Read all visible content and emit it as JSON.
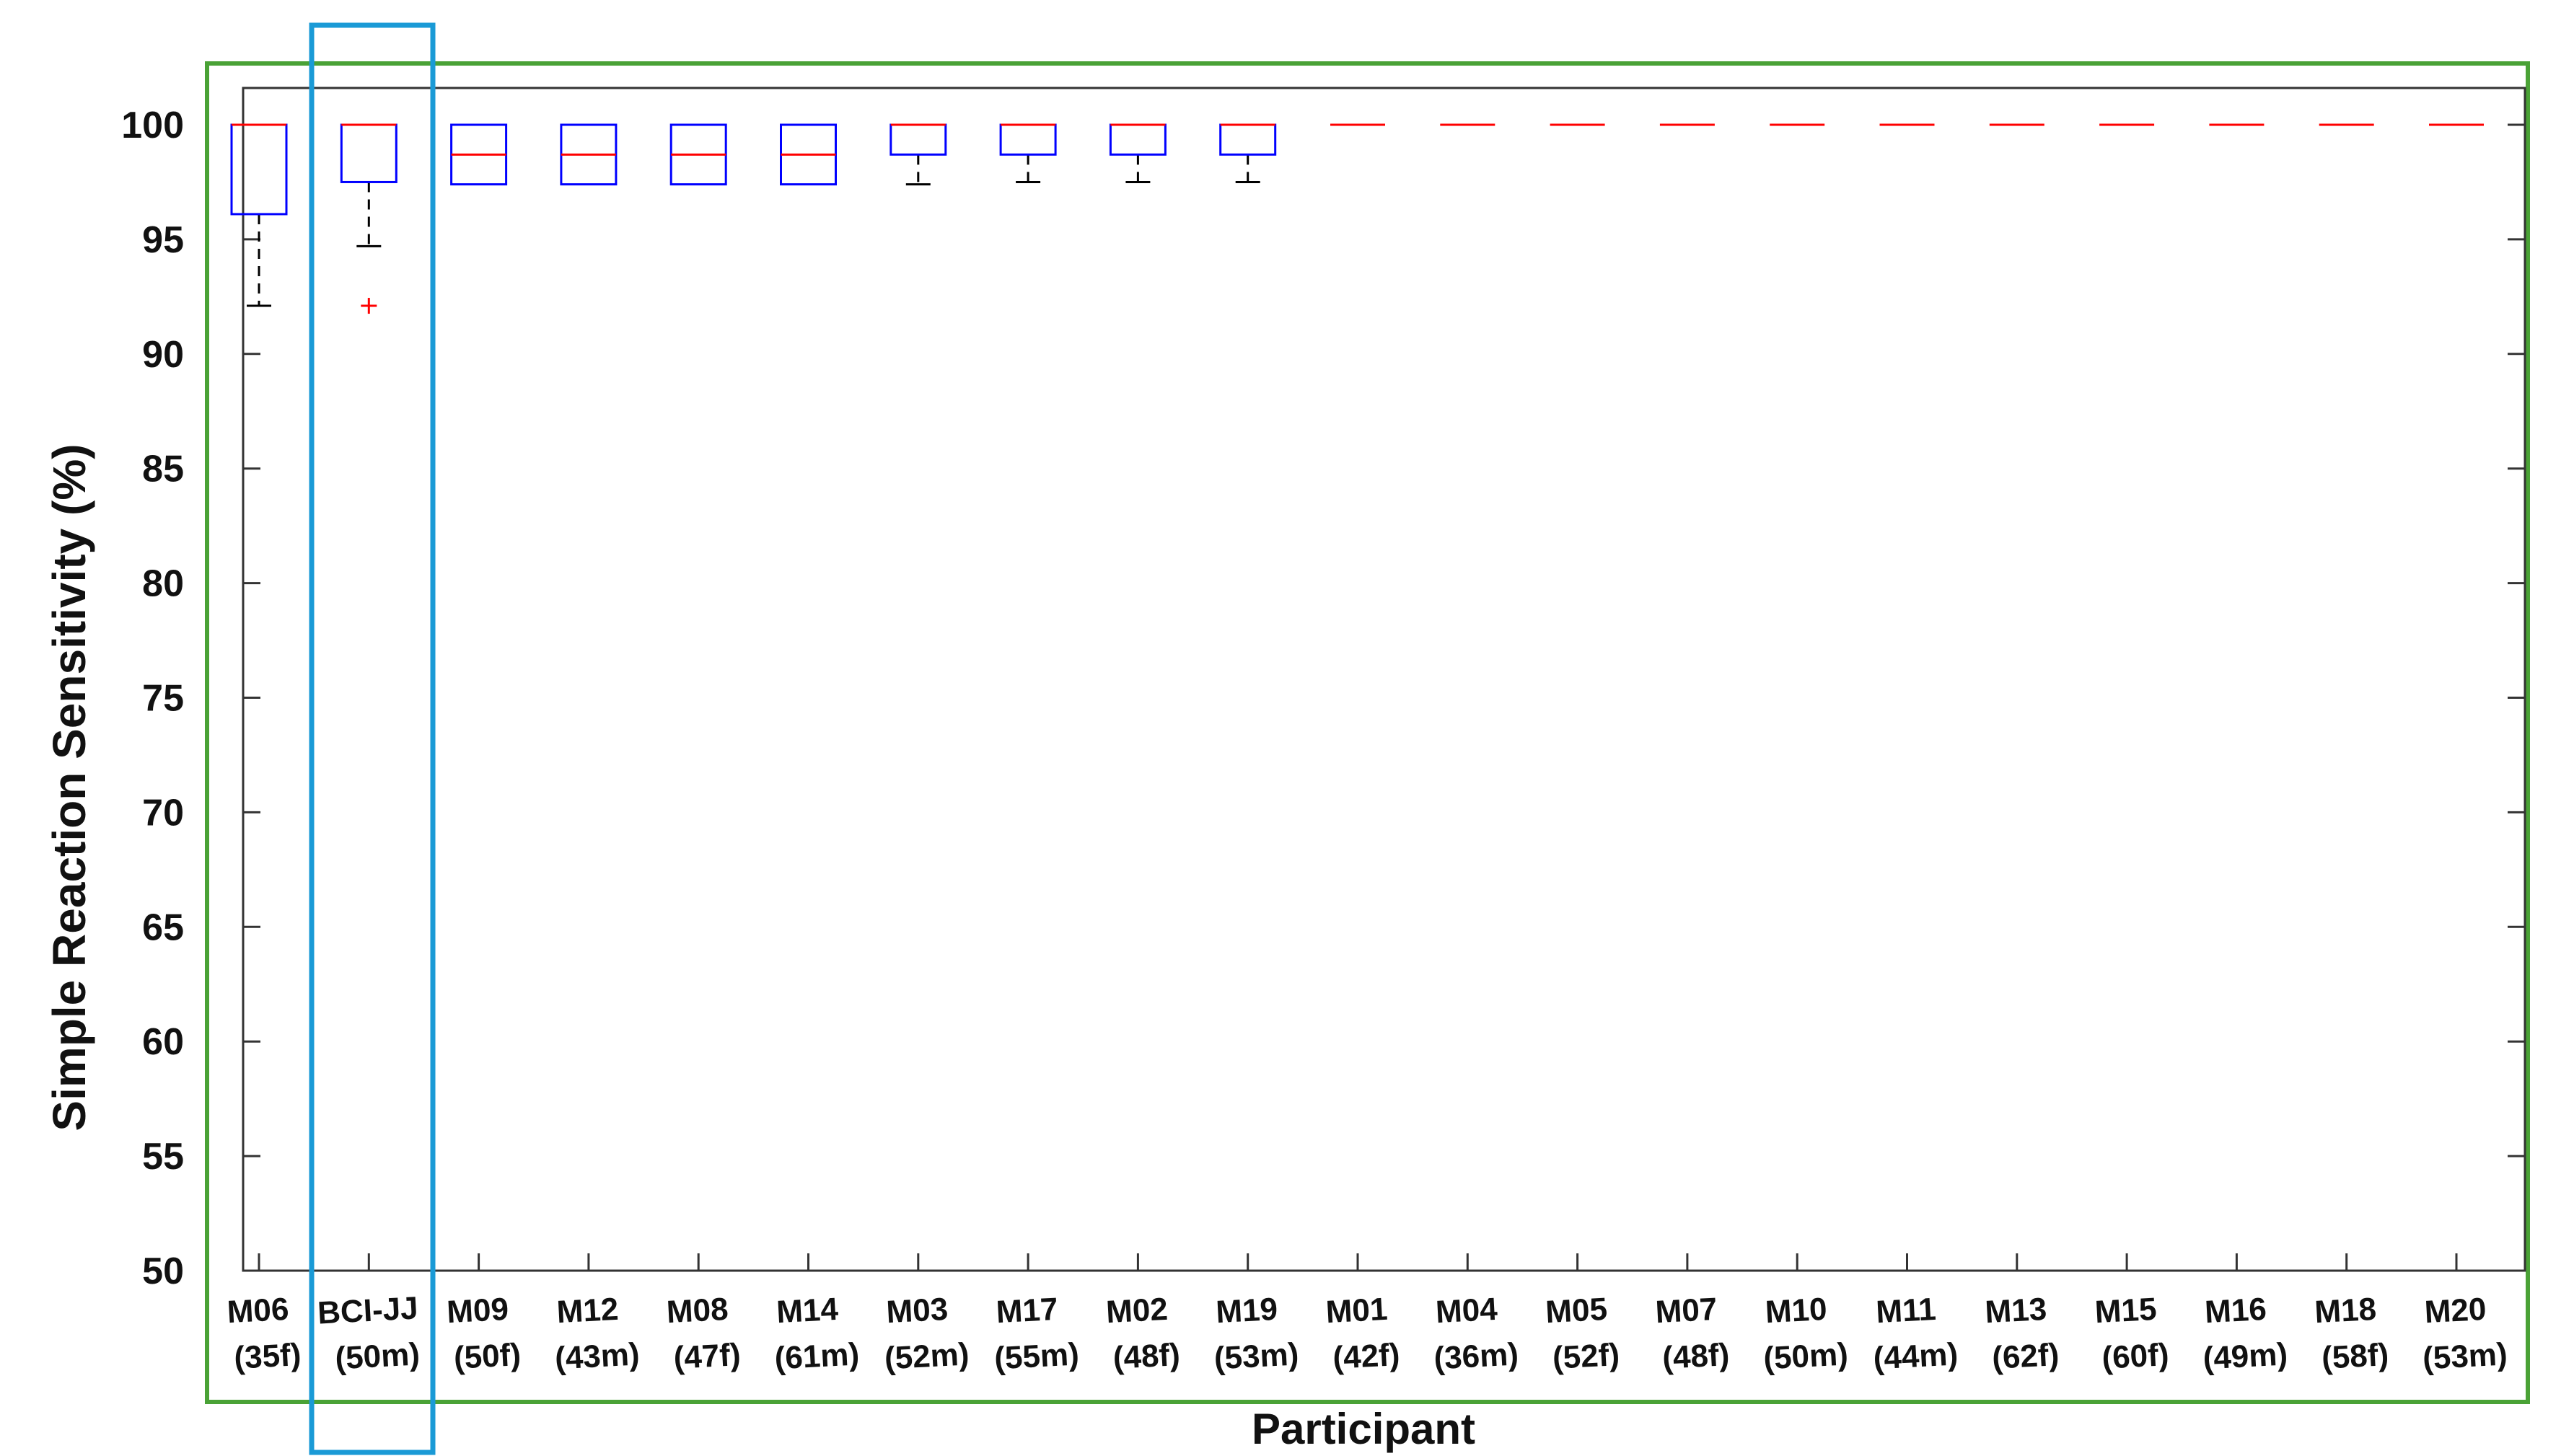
{
  "chart_data": {
    "type": "box",
    "title": "",
    "xlabel": "Participant",
    "ylabel": "Simple Reaction Sensitivity (%)",
    "ylim": [
      50,
      102
    ],
    "yticks": [
      50,
      55,
      60,
      65,
      70,
      75,
      80,
      85,
      90,
      95,
      100
    ],
    "grid": false,
    "legend": null,
    "categories": [
      {
        "id": "M06",
        "meta": "(35f)"
      },
      {
        "id": "BCI-JJ",
        "meta": "(50m)"
      },
      {
        "id": "M09",
        "meta": "(50f)"
      },
      {
        "id": "M12",
        "meta": "(43m)"
      },
      {
        "id": "M08",
        "meta": "(47f)"
      },
      {
        "id": "M14",
        "meta": "(61m)"
      },
      {
        "id": "M03",
        "meta": "(52m)"
      },
      {
        "id": "M17",
        "meta": "(55m)"
      },
      {
        "id": "M02",
        "meta": "(48f)"
      },
      {
        "id": "M19",
        "meta": "(53m)"
      },
      {
        "id": "M01",
        "meta": "(42f)"
      },
      {
        "id": "M04",
        "meta": "(36m)"
      },
      {
        "id": "M05",
        "meta": "(52f)"
      },
      {
        "id": "M07",
        "meta": "(48f)"
      },
      {
        "id": "M10",
        "meta": "(50m)"
      },
      {
        "id": "M11",
        "meta": "(44m)"
      },
      {
        "id": "M13",
        "meta": "(62f)"
      },
      {
        "id": "M15",
        "meta": "(60f)"
      },
      {
        "id": "M16",
        "meta": "(49m)"
      },
      {
        "id": "M18",
        "meta": "(58f)"
      },
      {
        "id": "M20",
        "meta": "(53m)"
      }
    ],
    "boxes": [
      {
        "whisker_low": 92.1,
        "q1": 96.1,
        "median": 100,
        "q3": 100,
        "whisker_high": 100,
        "outliers": []
      },
      {
        "whisker_low": 94.7,
        "q1": 97.5,
        "median": 100,
        "q3": 100,
        "whisker_high": 100,
        "outliers": [
          92.1
        ]
      },
      {
        "whisker_low": 97.4,
        "q1": 97.4,
        "median": 98.7,
        "q3": 100,
        "whisker_high": 100,
        "outliers": []
      },
      {
        "whisker_low": 97.4,
        "q1": 97.4,
        "median": 98.7,
        "q3": 100,
        "whisker_high": 100,
        "outliers": []
      },
      {
        "whisker_low": 97.4,
        "q1": 97.4,
        "median": 98.7,
        "q3": 100,
        "whisker_high": 100,
        "outliers": []
      },
      {
        "whisker_low": 97.4,
        "q1": 97.4,
        "median": 98.7,
        "q3": 100,
        "whisker_high": 100,
        "outliers": []
      },
      {
        "whisker_low": 97.4,
        "q1": 98.7,
        "median": 100,
        "q3": 100,
        "whisker_high": 100,
        "outliers": []
      },
      {
        "whisker_low": 97.5,
        "q1": 98.7,
        "median": 100,
        "q3": 100,
        "whisker_high": 100,
        "outliers": []
      },
      {
        "whisker_low": 97.5,
        "q1": 98.7,
        "median": 100,
        "q3": 100,
        "whisker_high": 100,
        "outliers": []
      },
      {
        "whisker_low": 97.5,
        "q1": 98.7,
        "median": 100,
        "q3": 100,
        "whisker_high": 100,
        "outliers": []
      },
      {
        "whisker_low": 100,
        "q1": 100,
        "median": 100,
        "q3": 100,
        "whisker_high": 100,
        "outliers": []
      },
      {
        "whisker_low": 100,
        "q1": 100,
        "median": 100,
        "q3": 100,
        "whisker_high": 100,
        "outliers": []
      },
      {
        "whisker_low": 100,
        "q1": 100,
        "median": 100,
        "q3": 100,
        "whisker_high": 100,
        "outliers": []
      },
      {
        "whisker_low": 100,
        "q1": 100,
        "median": 100,
        "q3": 100,
        "whisker_high": 100,
        "outliers": []
      },
      {
        "whisker_low": 100,
        "q1": 100,
        "median": 100,
        "q3": 100,
        "whisker_high": 100,
        "outliers": []
      },
      {
        "whisker_low": 100,
        "q1": 100,
        "median": 100,
        "q3": 100,
        "whisker_high": 100,
        "outliers": []
      },
      {
        "whisker_low": 100,
        "q1": 100,
        "median": 100,
        "q3": 100,
        "whisker_high": 100,
        "outliers": []
      },
      {
        "whisker_low": 100,
        "q1": 100,
        "median": 100,
        "q3": 100,
        "whisker_high": 100,
        "outliers": []
      },
      {
        "whisker_low": 100,
        "q1": 100,
        "median": 100,
        "q3": 100,
        "whisker_high": 100,
        "outliers": []
      },
      {
        "whisker_low": 100,
        "q1": 100,
        "median": 100,
        "q3": 100,
        "whisker_high": 100,
        "outliers": []
      },
      {
        "whisker_low": 100,
        "q1": 100,
        "median": 100,
        "q3": 100,
        "whisker_high": 100,
        "outliers": []
      }
    ],
    "highlighted_category": "BCI-JJ",
    "colors": {
      "box": "#0000ff",
      "median": "#ff0000",
      "whisker": "#000000",
      "outlier": "#ff0000",
      "outer_frame": "#4aa236",
      "highlight_frame": "#1a9ad6"
    }
  }
}
